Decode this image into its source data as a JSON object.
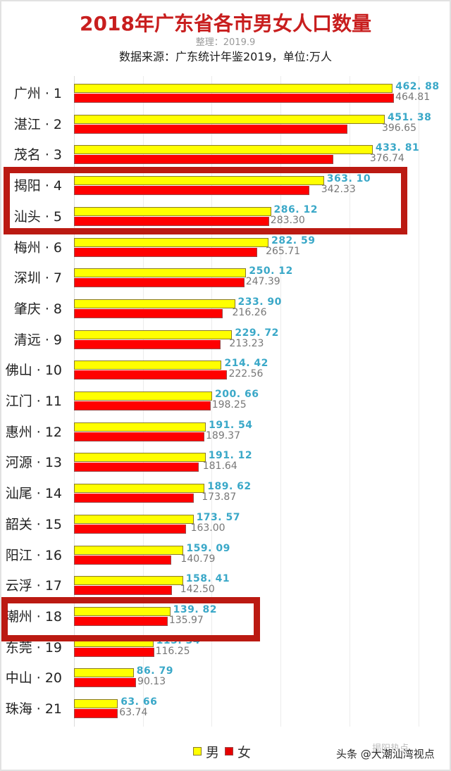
{
  "header": {
    "title": "2018年广东省各市男女人口数量",
    "compiled": "整理：2019.9",
    "source": "数据来源：广东统计年鉴2019，单位:万人"
  },
  "legend": {
    "male": "男",
    "female": "女",
    "male_color": "#ffff00",
    "female_color": "#ff0000"
  },
  "watermark": {
    "text": "头条 @大潮汕湾视点",
    "ghost": "揭阳热点"
  },
  "highlights": [
    {
      "rows": [
        4,
        5
      ],
      "color": "#bb1a12"
    },
    {
      "rows": [
        18
      ],
      "color": "#bb1a12"
    }
  ],
  "chart_data": {
    "type": "bar",
    "orientation": "horizontal",
    "title": "2018年广东省各市男女人口数量",
    "subtitle": "整理：2019.9；数据来源：广东统计年鉴2019，单位:万人",
    "xlabel": "",
    "ylabel": "",
    "xlim": [
      0,
      500
    ],
    "grid": true,
    "gridlines_x": [
      0,
      100,
      200,
      300,
      400,
      500
    ],
    "legend_position": "bottom",
    "categories": [
      "广州 · 1",
      "湛江 · 2",
      "茂名 · 3",
      "揭阳 · 4",
      "汕头 · 5",
      "梅州 · 6",
      "深圳 · 7",
      "肇庆 · 8",
      "清远 · 9",
      "佛山 · 10",
      "江门 · 11",
      "惠州 · 12",
      "河源 · 13",
      "汕尾 · 14",
      "韶关 · 15",
      "阳江 · 16",
      "云浮 · 17",
      "潮州 · 18",
      "东莞 · 19",
      "中山 · 20",
      "珠海 · 21"
    ],
    "series": [
      {
        "name": "男",
        "color": "#ffff00",
        "labels": [
          "462. 88",
          "451. 38",
          "433. 81",
          "363. 10",
          "286. 12",
          "282. 59",
          "250. 12",
          "233. 90",
          "229. 72",
          "214. 42",
          "200. 66",
          "191. 54",
          "191. 12",
          "189. 62",
          "173. 57",
          "159. 09",
          "158. 41",
          "139. 82",
          "115. 34",
          "86. 79",
          "63. 66"
        ],
        "values": [
          462.88,
          451.38,
          433.81,
          363.1,
          286.12,
          282.59,
          250.12,
          233.9,
          229.72,
          214.42,
          200.66,
          191.54,
          191.12,
          189.62,
          173.57,
          159.09,
          158.41,
          139.82,
          115.34,
          86.79,
          63.66
        ]
      },
      {
        "name": "女",
        "color": "#ff0000",
        "labels": [
          "464.81",
          "396.65",
          "376.74",
          "342.33",
          "283.30",
          "265.71",
          "247.39",
          "216.26",
          "213.23",
          "222.56",
          "198.25",
          "189.37",
          "181.64",
          "173.87",
          "163.00",
          "140.79",
          "142.50",
          "135.97",
          "116.25",
          "90.13",
          "63.74"
        ],
        "values": [
          464.81,
          396.65,
          376.74,
          342.33,
          283.3,
          265.71,
          247.39,
          216.26,
          213.23,
          222.56,
          198.25,
          189.37,
          181.64,
          173.87,
          163.0,
          140.79,
          142.5,
          135.97,
          116.25,
          90.13,
          63.74
        ]
      }
    ]
  }
}
